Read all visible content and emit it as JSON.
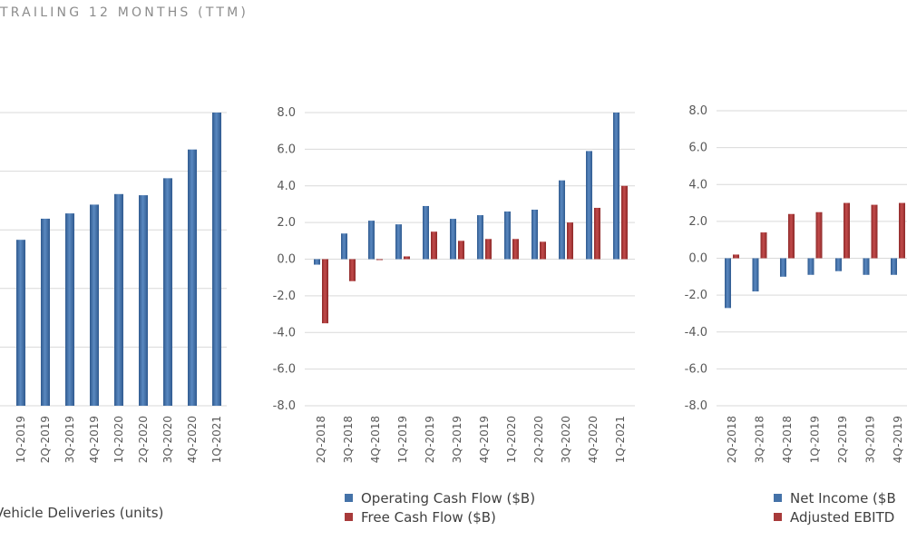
{
  "header": {
    "title": "TRAILING 12 MONTHS (TTM)"
  },
  "colors": {
    "blue": "#4472a8",
    "red": "#a83a3a",
    "grid": "#d9d9d9",
    "text": "#595959"
  },
  "chart_data": [
    {
      "type": "bar",
      "title": "",
      "categories": [
        "1Q-2019",
        "2Q-2019",
        "3Q-2019",
        "4Q-2019",
        "1Q-2020",
        "2Q-2020",
        "3Q-2020",
        "4Q-2020",
        "1Q-2021"
      ],
      "series": [
        {
          "name": "Vehicle Deliveries (units)",
          "values": [
            283000,
            319000,
            328000,
            343000,
            361000,
            359000,
            388000,
            437000,
            500000
          ]
        }
      ],
      "ylim": [
        0,
        500000
      ],
      "yticks": [
        0,
        100000,
        200000,
        300000,
        400000,
        500000
      ],
      "grid": true,
      "legend": "bottom",
      "legend_labels": [
        "Vehicle Deliveries (units)"
      ]
    },
    {
      "type": "bar",
      "title": "",
      "categories": [
        "2Q-2018",
        "3Q-2018",
        "4Q-2018",
        "1Q-2019",
        "2Q-2019",
        "3Q-2019",
        "4Q-2019",
        "1Q-2020",
        "2Q-2020",
        "3Q-2020",
        "4Q-2020",
        "1Q-2021"
      ],
      "series": [
        {
          "name": "Operating Cash Flow ($B)",
          "values": [
            -0.3,
            1.4,
            2.1,
            1.9,
            2.9,
            2.2,
            2.4,
            2.6,
            2.7,
            4.3,
            5.9,
            8.0
          ]
        },
        {
          "name": "Free Cash Flow ($B)",
          "values": [
            -3.5,
            -1.2,
            -0.05,
            0.15,
            1.5,
            1.0,
            1.1,
            1.1,
            0.95,
            2.0,
            2.8,
            4.0
          ]
        }
      ],
      "ylim": [
        -8.0,
        8.0
      ],
      "yticks": [
        "-8.0",
        "-6.0",
        "-4.0",
        "-2.0",
        "0.0",
        "2.0",
        "4.0",
        "6.0",
        "8.0"
      ],
      "grid": true,
      "legend": "bottom",
      "legend_labels": [
        "Operating Cash Flow ($B)",
        "Free Cash Flow ($B)"
      ]
    },
    {
      "type": "bar",
      "title": "",
      "categories": [
        "2Q-2018",
        "3Q-2018",
        "4Q-2018",
        "1Q-2019",
        "2Q-2019",
        "3Q-2019",
        "4Q-2019"
      ],
      "series": [
        {
          "name": "Net Income ($B",
          "values": [
            -2.7,
            -1.8,
            -1.0,
            -0.9,
            -0.7,
            -0.9,
            -0.9
          ]
        },
        {
          "name": "Adjusted EBITD",
          "values": [
            0.2,
            1.4,
            2.4,
            2.5,
            3.0,
            2.9,
            3.0
          ]
        }
      ],
      "ylim": [
        -8.0,
        8.0
      ],
      "yticks": [
        "-8.0",
        "-6.0",
        "-4.0",
        "-2.0",
        "0.0",
        "2.0",
        "4.0",
        "6.0",
        "8.0"
      ],
      "grid": true,
      "legend": "bottom",
      "legend_labels": [
        "Net Income ($B",
        "Adjusted EBITD"
      ]
    }
  ]
}
